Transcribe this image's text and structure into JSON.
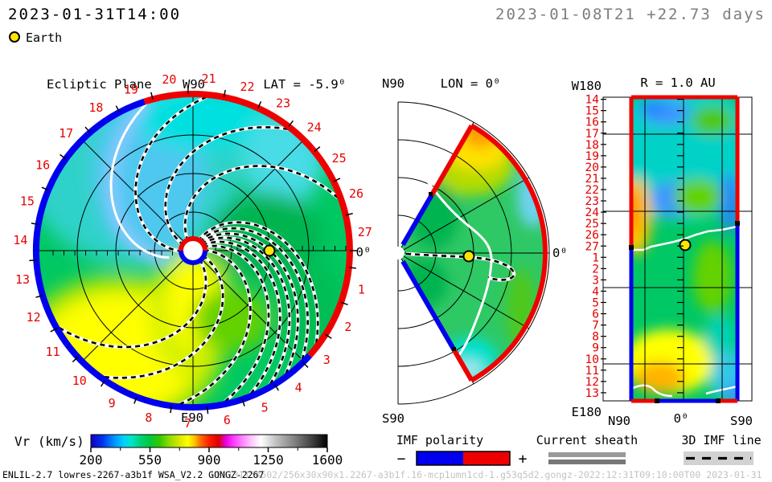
{
  "header": {
    "datetime_current": "2023-01-31T14:00",
    "datetime_run": "2023-01-08T21 +22.73 days",
    "earth_label": "Earth"
  },
  "panels": {
    "ecliptic": {
      "title": "Ecliptic Plane",
      "lat_label": "LAT = -5.9⁰",
      "top_label": "W90",
      "bottom_label": "E90",
      "zero_label": "0⁰",
      "ring_labels": [
        "1",
        "2",
        "3",
        "4",
        "5",
        "6",
        "7",
        "8",
        "9",
        "10",
        "11",
        "12",
        "13",
        "14",
        "15",
        "16",
        "17",
        "18",
        "19",
        "20",
        "21",
        "22",
        "23",
        "24",
        "25",
        "26",
        "27"
      ]
    },
    "meridional": {
      "top_left_label": "N90",
      "title": "LON = 0⁰",
      "bottom_label": "S90",
      "zero_label": "0⁰"
    },
    "radial_map": {
      "title": "R = 1.0 AU",
      "top_left_label": "W180",
      "bottom_left_label": "E180",
      "x_labels": [
        "N90",
        "0⁰",
        "S90"
      ],
      "row_labels": [
        "14",
        "15",
        "16",
        "17",
        "18",
        "19",
        "20",
        "21",
        "22",
        "23",
        "24",
        "25",
        "26",
        "27",
        "1",
        "2",
        "3",
        "4",
        "5",
        "6",
        "7",
        "8",
        "9",
        "10",
        "11",
        "12",
        "13"
      ]
    }
  },
  "colorbar": {
    "label": "Vr (km/s)",
    "ticks": [
      "200",
      "550",
      "900",
      "1250",
      "1600"
    ],
    "stops": [
      [
        "0.00",
        "#1400be"
      ],
      [
        "0.05",
        "#0032f0"
      ],
      [
        "0.10",
        "#0096ff"
      ],
      [
        "0.14",
        "#00d2ff"
      ],
      [
        "0.17",
        "#00e6c8"
      ],
      [
        "0.21",
        "#00d278"
      ],
      [
        "0.25",
        "#00c83c"
      ],
      [
        "0.29",
        "#32c800"
      ],
      [
        "0.33",
        "#8cdc00"
      ],
      [
        "0.37",
        "#d2e600"
      ],
      [
        "0.41",
        "#ffff00"
      ],
      [
        "0.44",
        "#ffbe00"
      ],
      [
        "0.46",
        "#ff7800"
      ],
      [
        "0.50",
        "#ff1e00"
      ],
      [
        "0.54",
        "#dc0000"
      ],
      [
        "0.57",
        "#e600dc"
      ],
      [
        "0.60",
        "#ff32ff"
      ],
      [
        "0.64",
        "#ff82ff"
      ],
      [
        "0.68",
        "#ffc8ff"
      ],
      [
        "0.72",
        "#ffffff"
      ],
      [
        "0.78",
        "#c3c3c3"
      ],
      [
        "0.86",
        "#828282"
      ],
      [
        "0.94",
        "#3c3c3c"
      ],
      [
        "1.00",
        "#000000"
      ]
    ]
  },
  "legends": {
    "imf_polarity": {
      "label": "IMF polarity",
      "minus": "−",
      "plus": "+",
      "neg_color": "#0000ee",
      "pos_color": "#ee0000"
    },
    "current_sheath": {
      "label": "Current sheath"
    },
    "imf_line_3d": {
      "label": "3D IMF line"
    }
  },
  "footer": {
    "model_info": "ENLIL-2.7 lowres-2267-a3b1f WSA_V2.2 GONGZ-2267",
    "watermark": "UE0131154502/256x30x90x1.2267-a3b1f.16-mcp1umn1cd-1.g53q5d2.gongz-2022:12:31T09:10:00T00    2023-01-31"
  },
  "chart_data": [
    {
      "type": "heatmap",
      "subtype": "polar-ecliptic-plane",
      "title": "Ecliptic Plane",
      "quantity": "Vr (km/s)",
      "lat_deg": -5.9,
      "radius_max_au": 2.1,
      "angular_labels_red": [
        1,
        2,
        3,
        4,
        5,
        6,
        7,
        8,
        9,
        10,
        11,
        12,
        13,
        14,
        15,
        16,
        17,
        18,
        19,
        20,
        21,
        22,
        23,
        24,
        25,
        26,
        27
      ],
      "cardinal_labels": {
        "right": "0⁰",
        "top": "W90",
        "bottom": "E90"
      },
      "earth_marker": {
        "angle_deg": 0,
        "r_au": 1.0
      },
      "imf_polarity_boundary": {
        "red_positive_arc_deg": [
          -42,
          108
        ],
        "blue_negative_arc_deg": [
          108,
          318
        ]
      },
      "imf_line_outer_angles_deg": [
        85,
        52,
        20,
        -37,
        -45,
        -53,
        -60,
        -68,
        -78,
        -95,
        -125,
        -150
      ],
      "current_sheet_outer_angle_deg": 107,
      "field_regions": "slow wind cyan ~350 km/s top-left, yellow ~600 km/s bottom-left and below center, green ~450-500 km/s elsewhere"
    },
    {
      "type": "heatmap",
      "subtype": "polar-meridional-plane",
      "title": "LON = 0⁰",
      "quantity": "Vr (km/s)",
      "wedge_half_angle_deg": 60,
      "cardinal_labels": {
        "top": "N90",
        "bottom": "S90",
        "right": "0⁰"
      },
      "earth_marker": {
        "angle_deg": 0,
        "r_au": 1.0
      },
      "field_regions": "orange/yellow ~600 km/s at north edge, cyan ~350 km/s at outer mid and south edge, green elsewhere"
    },
    {
      "type": "heatmap",
      "subtype": "latitude-time-map",
      "title": "R = 1.0 AU",
      "quantity": "Vr (km/s)",
      "x_axis": [
        "N90",
        "0⁰",
        "S90"
      ],
      "y_axis_day_labels": [
        14,
        15,
        16,
        17,
        18,
        19,
        20,
        21,
        22,
        23,
        24,
        25,
        26,
        27,
        1,
        2,
        3,
        4,
        5,
        6,
        7,
        8,
        9,
        10,
        11,
        12,
        13
      ],
      "corner_labels": {
        "top_left": "W180",
        "bottom_left": "E180"
      },
      "earth_marker_row_label": 27,
      "field_regions": "blue/cyan ~300-400 top, orange left around rows 24-26, yellow/orange rows 4-9, green elsewhere, cyan-blue bottom right"
    },
    {
      "type": "colorbar",
      "label": "Vr (km/s)",
      "range": [
        200,
        1600
      ],
      "ticks": [
        200,
        550,
        900,
        1250,
        1600
      ]
    }
  ]
}
